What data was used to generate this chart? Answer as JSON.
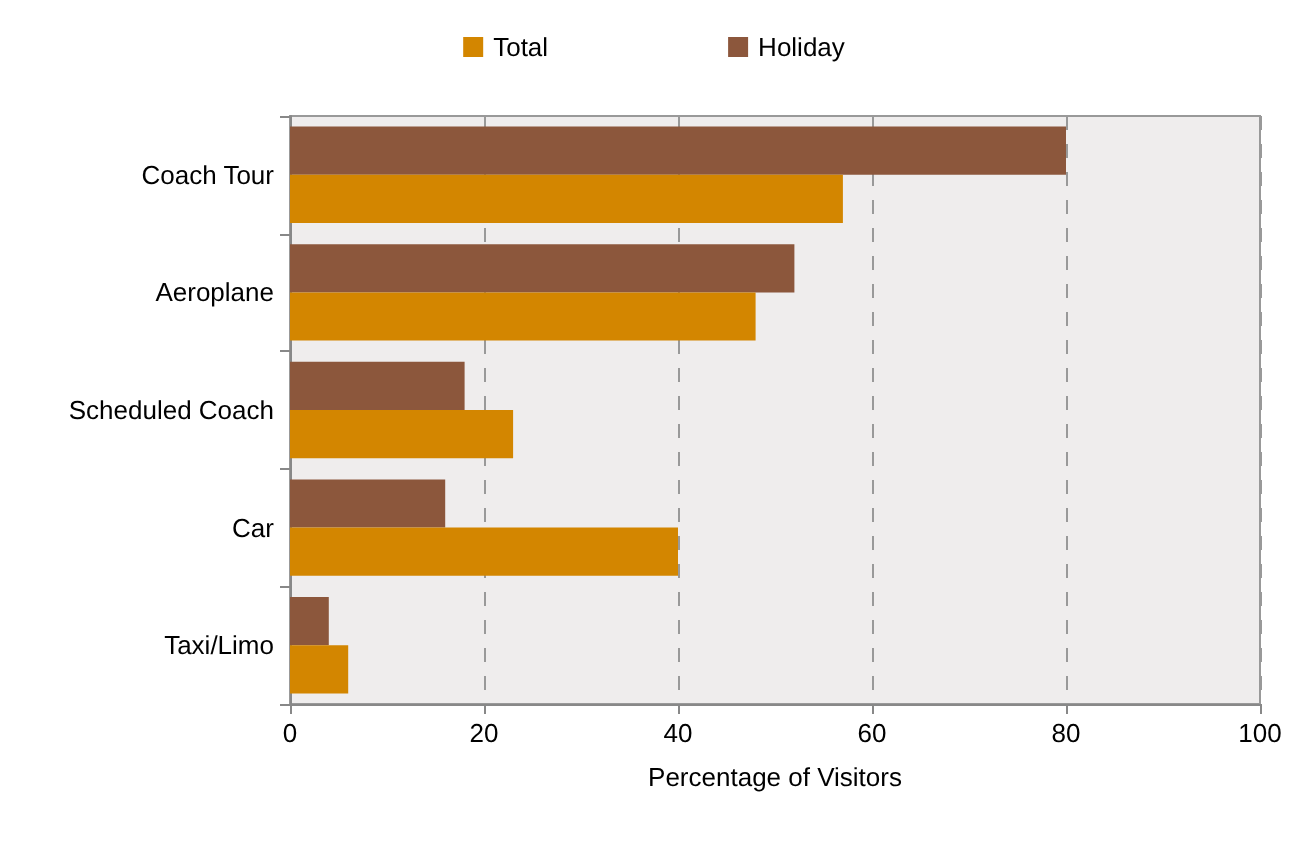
{
  "chart_data": {
    "type": "bar",
    "orientation": "horizontal",
    "xlabel": "Percentage of Visitors",
    "categories": [
      "Coach Tour",
      "Aeroplane",
      "Scheduled Coach",
      "Car",
      "Taxi/Limo"
    ],
    "series": [
      {
        "name": "Total",
        "color": "#d38600",
        "values": [
          57,
          48,
          23,
          40,
          6
        ]
      },
      {
        "name": "Holiday",
        "color": "#8c573c",
        "values": [
          80,
          52,
          18,
          16,
          4
        ]
      }
    ],
    "xlim": [
      0,
      100
    ],
    "xticks": [
      0,
      20,
      40,
      60,
      80,
      100
    ],
    "grid": "x",
    "legend": "top"
  }
}
